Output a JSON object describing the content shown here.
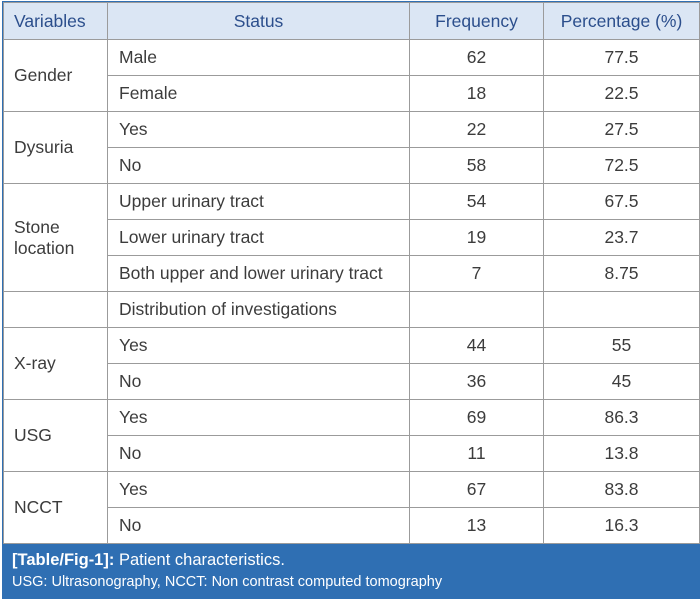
{
  "table": {
    "headers": [
      "Variables",
      "Status",
      "Frequency",
      "Percentage (%)"
    ],
    "rows": [
      {
        "variable": "Gender",
        "status": "Male",
        "frequency": "62",
        "percentage": "77.5"
      },
      {
        "status": "Female",
        "frequency": "18",
        "percentage": "22.5"
      },
      {
        "variable": "Dysuria",
        "status": "Yes",
        "frequency": "22",
        "percentage": "27.5"
      },
      {
        "status": "No",
        "frequency": "58",
        "percentage": "72.5"
      },
      {
        "variable": "Stone location",
        "status": "Upper urinary tract",
        "frequency": "54",
        "percentage": "67.5"
      },
      {
        "status": "Lower urinary tract",
        "frequency": "19",
        "percentage": "23.7"
      },
      {
        "status": "Both upper and lower urinary tract",
        "frequency": "7",
        "percentage": "8.75"
      },
      {
        "variable": "",
        "status": "Distribution of investigations",
        "frequency": "",
        "percentage": ""
      },
      {
        "variable": "X-ray",
        "status": "Yes",
        "frequency": "44",
        "percentage": "55"
      },
      {
        "status": "No",
        "frequency": "36",
        "percentage": "45"
      },
      {
        "variable": "USG",
        "status": "Yes",
        "frequency": "69",
        "percentage": "86.3"
      },
      {
        "status": "No",
        "frequency": "11",
        "percentage": "13.8"
      },
      {
        "variable": "NCCT",
        "status": "Yes",
        "frequency": "67",
        "percentage": "83.8"
      },
      {
        "status": "No",
        "frequency": "13",
        "percentage": "16.3"
      }
    ]
  },
  "caption": {
    "label": "[Table/Fig-1]:",
    "title": "Patient characteristics.",
    "note": "USG: Ultrasonography, NCCT: Non contrast computed tomography"
  },
  "colors": {
    "header_bg": "#dbe6f4",
    "header_text": "#2b4e8c",
    "caption_bg": "#2f6fb3",
    "border": "#9b9b9b"
  }
}
